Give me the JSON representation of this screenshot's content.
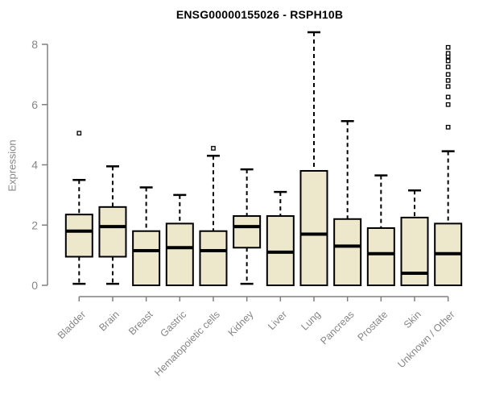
{
  "title": "ENSG00000155026 - RSPH10B",
  "chart_data": {
    "type": "boxplot",
    "title": "ENSG00000155026 - RSPH10B",
    "ylabel": "Expression",
    "xlabel": "",
    "ylim": [
      0,
      8
    ],
    "yticks": [
      "0",
      "2",
      "4",
      "6",
      "8"
    ],
    "grid": false,
    "legend": false,
    "categories": [
      "Bladder",
      "Brain",
      "Breast",
      "Gastric",
      "Hematopoietic cells",
      "Kidney",
      "Liver",
      "Lung",
      "Pancreas",
      "Prostate",
      "Skin",
      "Unknown / Other"
    ],
    "series": [
      {
        "name": "Bladder",
        "low": 0.05,
        "q1": 0.95,
        "median": 1.8,
        "q3": 2.35,
        "high": 3.5,
        "outliers": [
          5.05
        ]
      },
      {
        "name": "Brain",
        "low": 0.05,
        "q1": 0.95,
        "median": 1.95,
        "q3": 2.6,
        "high": 3.95,
        "outliers": []
      },
      {
        "name": "Breast",
        "low": 0.0,
        "q1": 0.0,
        "median": 1.15,
        "q3": 1.8,
        "high": 3.25,
        "outliers": []
      },
      {
        "name": "Gastric",
        "low": 0.0,
        "q1": 0.0,
        "median": 1.25,
        "q3": 2.05,
        "high": 3.0,
        "outliers": []
      },
      {
        "name": "Hematopoietic cells",
        "low": 0.0,
        "q1": 0.0,
        "median": 1.15,
        "q3": 1.8,
        "high": 4.3,
        "outliers": [
          4.55
        ]
      },
      {
        "name": "Kidney",
        "low": 0.05,
        "q1": 1.25,
        "median": 1.95,
        "q3": 2.3,
        "high": 3.85,
        "outliers": []
      },
      {
        "name": "Liver",
        "low": 0.0,
        "q1": 0.0,
        "median": 1.1,
        "q3": 2.3,
        "high": 3.1,
        "outliers": []
      },
      {
        "name": "Lung",
        "low": 0.0,
        "q1": 0.0,
        "median": 1.7,
        "q3": 3.8,
        "high": 8.4,
        "outliers": []
      },
      {
        "name": "Pancreas",
        "low": 0.0,
        "q1": 0.0,
        "median": 1.3,
        "q3": 2.2,
        "high": 5.45,
        "outliers": []
      },
      {
        "name": "Prostate",
        "low": 0.0,
        "q1": 0.0,
        "median": 1.05,
        "q3": 1.9,
        "high": 3.65,
        "outliers": []
      },
      {
        "name": "Skin",
        "low": 0.0,
        "q1": 0.0,
        "median": 0.4,
        "q3": 2.25,
        "high": 3.15,
        "outliers": []
      },
      {
        "name": "Unknown / Other",
        "low": 0.0,
        "q1": 0.0,
        "median": 1.05,
        "q3": 2.05,
        "high": 4.45,
        "outliers": [
          5.25,
          6.0,
          6.25,
          6.6,
          6.8,
          7.0,
          7.25,
          7.45,
          7.6,
          7.7,
          7.9
        ]
      }
    ],
    "colors": {
      "box_fill": "#EDE7CB",
      "box_stroke": "#000000",
      "median": "#000000",
      "whisker": "#000000",
      "outlier_fill": "#ffffff",
      "outlier_stroke": "#000000",
      "axis": "#808080",
      "tick_label": "#868686",
      "title": "#000000",
      "background": "#ffffff"
    }
  }
}
